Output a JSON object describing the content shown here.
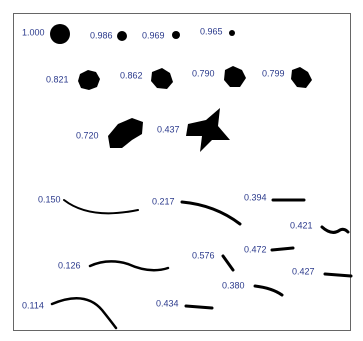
{
  "items": [
    {
      "label": "1.000"
    },
    {
      "label": "0.986"
    },
    {
      "label": "0.969"
    },
    {
      "label": "0.965"
    },
    {
      "label": "0.821"
    },
    {
      "label": "0.862"
    },
    {
      "label": "0.790"
    },
    {
      "label": "0.799"
    },
    {
      "label": "0.720"
    },
    {
      "label": "0.437"
    },
    {
      "label": "0.150"
    },
    {
      "label": "0.217"
    },
    {
      "label": "0.394"
    },
    {
      "label": "0.421"
    },
    {
      "label": "0.126"
    },
    {
      "label": "0.576"
    },
    {
      "label": "0.472"
    },
    {
      "label": "0.427"
    },
    {
      "label": "0.380"
    },
    {
      "label": "0.114"
    },
    {
      "label": "0.434"
    }
  ]
}
